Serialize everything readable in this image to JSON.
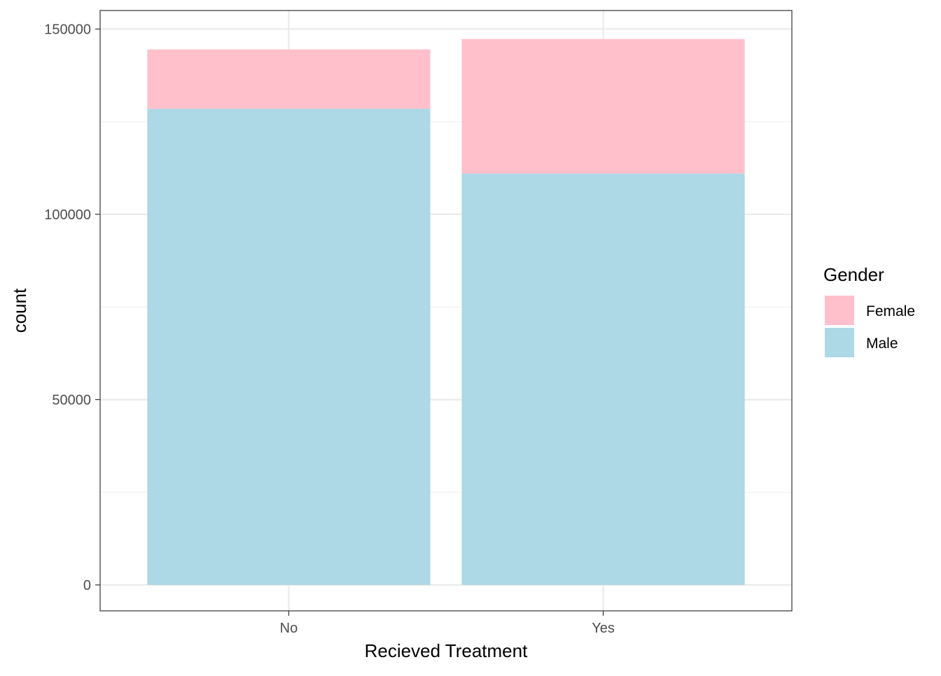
{
  "chart_data": {
    "type": "bar",
    "stacked": true,
    "categories": [
      "No",
      "Yes"
    ],
    "series": [
      {
        "name": "Male",
        "values": [
          128500,
          111000
        ],
        "color": "#add8e6"
      },
      {
        "name": "Female",
        "values": [
          16000,
          36300
        ],
        "color": "#ffc0cb"
      }
    ],
    "xlabel": "Recieved Treatment",
    "ylabel": "count",
    "ylim": [
      -7000,
      155000
    ],
    "y_ticks": [
      0,
      50000,
      100000,
      150000
    ],
    "y_tick_labels": [
      "0",
      "50000",
      "100000",
      "150000"
    ],
    "y_minor_ticks": [
      25000,
      75000,
      125000
    ],
    "grid": true,
    "legend": {
      "title": "Gender",
      "placement": "right",
      "entries": [
        {
          "label": "Female",
          "color": "#ffc0cb"
        },
        {
          "label": "Male",
          "color": "#add8e6"
        }
      ]
    }
  }
}
